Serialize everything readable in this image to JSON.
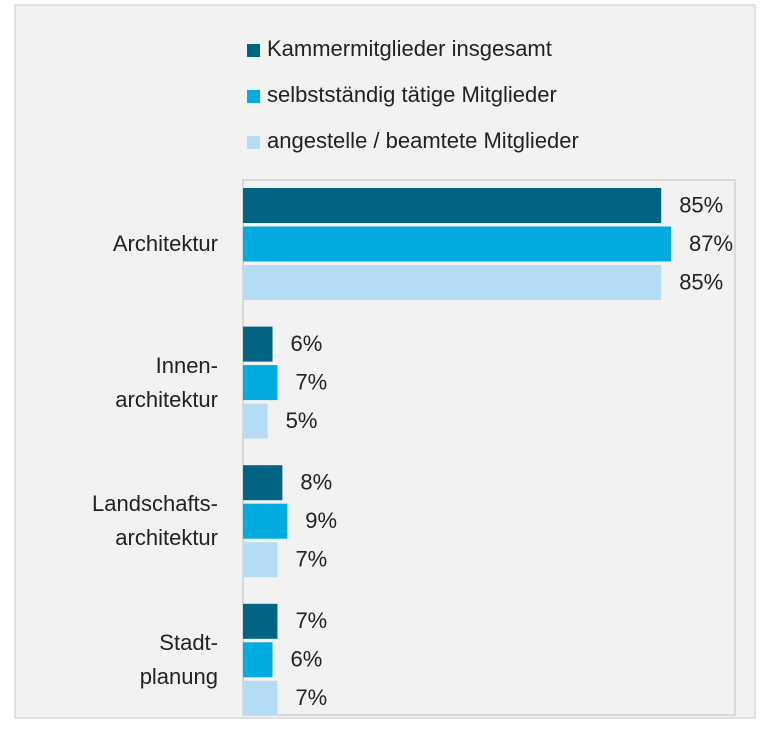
{
  "chart_data": {
    "type": "barh",
    "categories": [
      "Architektur",
      "Innen-\narchitektur",
      "Landschafts-\narchitektur",
      "Stadt-\nplanung"
    ],
    "series": [
      {
        "name": "Kammermitglieder insgesamt",
        "color": "#006482",
        "values": [
          85,
          6,
          8,
          7
        ],
        "value_labels": [
          "85%",
          "6%",
          "8%",
          "7%"
        ]
      },
      {
        "name": "selbstständig tätige Mitglieder",
        "color": "#00acdf",
        "values": [
          87,
          7,
          9,
          6
        ],
        "value_labels": [
          "87%",
          "7%",
          "9%",
          "6%"
        ]
      },
      {
        "name": "angestelle / beamtete Mitglieder",
        "color": "#b4dcf5",
        "values": [
          85,
          5,
          7,
          7
        ],
        "value_labels": [
          "85%",
          "5%",
          "7%",
          "7%"
        ]
      }
    ],
    "xlim": [
      0,
      100
    ],
    "legend": "top"
  }
}
